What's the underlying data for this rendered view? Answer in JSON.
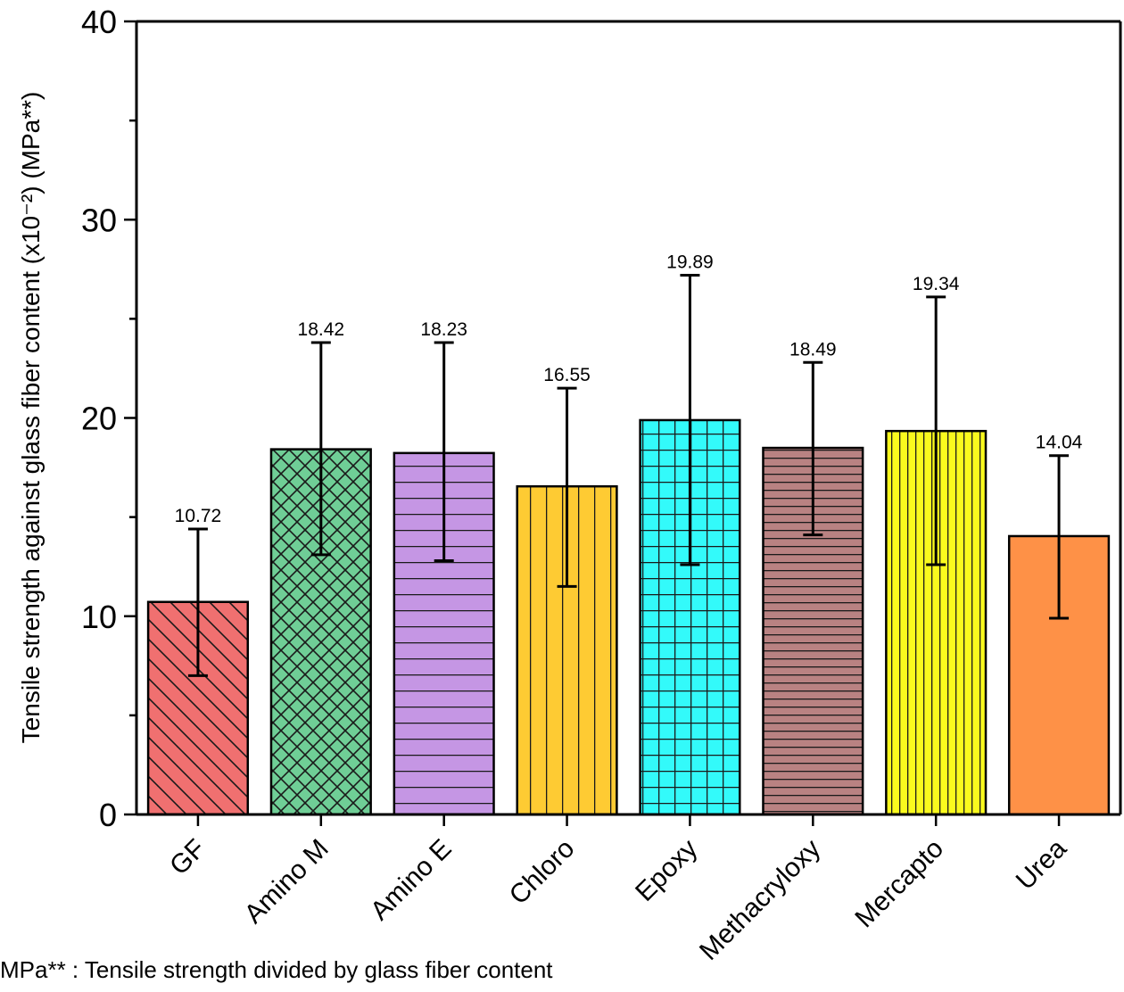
{
  "chart_data": {
    "type": "bar",
    "title": "",
    "xlabel": "",
    "ylabel": "Tensile strength against glass fiber content (x10⁻²) (MPa**)",
    "ylim": [
      0,
      40
    ],
    "yticks": [
      0,
      10,
      20,
      30,
      40
    ],
    "yminor_step": 5,
    "grid": false,
    "legend": "none",
    "categories": [
      "GF",
      "Amino M",
      "Amino E",
      "Chloro",
      "Epoxy",
      "Methacryloxy",
      "Mercapto",
      "Urea"
    ],
    "values": [
      10.72,
      18.42,
      18.23,
      16.55,
      19.89,
      18.49,
      19.34,
      14.04
    ],
    "value_labels": [
      "10.72",
      "18.42",
      "18.23",
      "16.55",
      "19.89",
      "18.49",
      "19.34",
      "14.04"
    ],
    "error_upper": [
      14.4,
      23.8,
      23.8,
      21.5,
      27.2,
      22.8,
      26.1,
      18.1
    ],
    "error_lower": [
      7.0,
      13.1,
      12.8,
      11.5,
      12.6,
      14.1,
      12.6,
      9.9
    ],
    "colors": [
      "#f07070",
      "#6fce96",
      "#c596e4",
      "#fecb33",
      "#33fafa",
      "#b98282",
      "#fafa1e",
      "#fe9147"
    ],
    "patterns": [
      "diag-down",
      "crosshatch",
      "horizontal",
      "vertical-wide",
      "grid",
      "horizontal-dense",
      "vertical-dense",
      "none"
    ],
    "footnote": "MPa** : Tensile strength divided by glass fiber content"
  }
}
